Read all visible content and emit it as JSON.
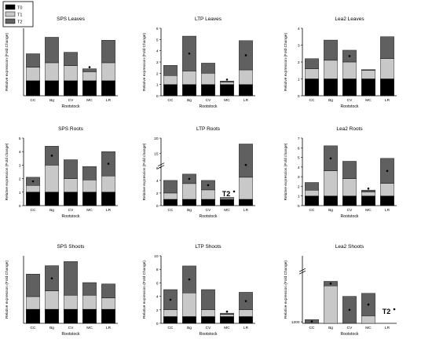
{
  "legend": {
    "items": [
      {
        "label": "T0",
        "color": "#000000"
      },
      {
        "label": "T1",
        "color": "#c8c8c8"
      },
      {
        "label": "T2",
        "color": "#606060"
      }
    ]
  },
  "colors": {
    "T0": "#000000",
    "T1": "#c8c8c8",
    "T2": "#606060"
  },
  "chart_data": [
    {
      "type": "bar",
      "stacked": true,
      "title": "SPS Leaves",
      "xlabel": "Rootstock",
      "ylabel": "Relative expression (Fold Change)",
      "categories": [
        "CC",
        "Bg",
        "CV",
        "MC",
        "LR"
      ],
      "series": [
        {
          "name": "T0",
          "values": [
            1.0,
            1.0,
            1.0,
            1.0,
            1.0
          ]
        },
        {
          "name": "T1",
          "values": [
            0.9,
            1.2,
            1.0,
            0.6,
            1.2
          ]
        },
        {
          "name": "T2",
          "values": [
            0.9,
            1.7,
            0.9,
            0.2,
            1.5
          ]
        }
      ],
      "significance": [
        false,
        false,
        false,
        true,
        false
      ],
      "yticks": [],
      "ylim": [
        0,
        4.5
      ],
      "grid": false
    },
    {
      "type": "bar",
      "stacked": true,
      "title": "LTP Leaves",
      "xlabel": "Rootstock",
      "ylabel": "Relative expression (Fold Change)",
      "categories": [
        "CC",
        "Bg",
        "CV",
        "MC",
        "LR"
      ],
      "series": [
        {
          "name": "T0",
          "values": [
            1.0,
            1.0,
            1.0,
            1.0,
            1.0
          ]
        },
        {
          "name": "T1",
          "values": [
            0.8,
            1.2,
            1.0,
            0.2,
            1.3
          ]
        },
        {
          "name": "T2",
          "values": [
            0.9,
            3.1,
            0.9,
            0.1,
            2.6
          ]
        }
      ],
      "significance": [
        false,
        true,
        false,
        true,
        true
      ],
      "yticks": [
        "0",
        "1",
        "2",
        "3",
        "4",
        "5",
        "6"
      ],
      "ylim": [
        0,
        6
      ],
      "grid": false
    },
    {
      "type": "bar",
      "stacked": true,
      "title": "Lea2 Leaves",
      "xlabel": "Rootstock",
      "ylabel": "Relative expression (Fold Change)",
      "categories": [
        "CC",
        "Bg",
        "CV",
        "MC",
        "LR"
      ],
      "series": [
        {
          "name": "T0",
          "values": [
            1.0,
            1.0,
            1.0,
            1.0,
            1.0
          ]
        },
        {
          "name": "T1",
          "values": [
            0.6,
            1.1,
            1.0,
            0.5,
            1.2
          ]
        },
        {
          "name": "T2",
          "values": [
            0.6,
            1.2,
            0.7,
            0.05,
            1.3
          ]
        }
      ],
      "significance": [
        false,
        false,
        true,
        false,
        false
      ],
      "yticks": [
        "0",
        "1",
        "2",
        "3",
        "4"
      ],
      "ylim": [
        0,
        4
      ],
      "grid": false
    },
    {
      "type": "bar",
      "stacked": true,
      "title": "SPS Roots",
      "xlabel": "Rootstock",
      "ylabel": "Relative expression (Fold change)",
      "categories": [
        "CC",
        "Bg",
        "CV",
        "MC",
        "LR"
      ],
      "series": [
        {
          "name": "T0",
          "values": [
            1.0,
            1.0,
            1.0,
            1.0,
            1.0
          ]
        },
        {
          "name": "T1",
          "values": [
            0.5,
            2.0,
            1.0,
            0.9,
            1.2
          ]
        },
        {
          "name": "T2",
          "values": [
            0.6,
            1.4,
            1.4,
            1.0,
            1.8
          ]
        }
      ],
      "significance": [
        true,
        true,
        false,
        false,
        true
      ],
      "yticks": [
        "0",
        "1",
        "2",
        "3",
        "4",
        "5"
      ],
      "ylim": [
        0,
        5
      ],
      "grid": false
    },
    {
      "type": "bar",
      "stacked": true,
      "title": "LTP Roots",
      "xlabel": "Rootstock",
      "ylabel": "Relative expression (Fold change)",
      "categories": [
        "CC",
        "Bg",
        "CV",
        "MC",
        "LR"
      ],
      "series": [
        {
          "name": "T0",
          "values": [
            1.0,
            1.0,
            1.0,
            1.0,
            1.0
          ]
        },
        {
          "name": "T1",
          "values": [
            1.0,
            2.5,
            1.5,
            0.2,
            3.5
          ]
        },
        {
          "name": "T2",
          "values": [
            2.0,
            1.5,
            1.5,
            0.1,
            13.6
          ]
        }
      ],
      "significance": [
        false,
        true,
        true,
        false,
        true
      ],
      "inline_label": {
        "text": "T2",
        "category": "MC"
      },
      "yticks": [
        "0",
        "2",
        "4",
        "6",
        "15",
        "20"
      ],
      "ylim": [
        0,
        20
      ],
      "axis_break": true,
      "grid": false
    },
    {
      "type": "bar",
      "stacked": true,
      "title": "Lea2 Roots",
      "xlabel": "Rootstock",
      "ylabel": "Relative expression (Fold change)",
      "categories": [
        "CC",
        "Bg",
        "CV",
        "MC",
        "LR"
      ],
      "series": [
        {
          "name": "T0",
          "values": [
            1.0,
            1.0,
            1.0,
            1.0,
            1.0
          ]
        },
        {
          "name": "T1",
          "values": [
            0.6,
            2.6,
            1.8,
            0.4,
            1.3
          ]
        },
        {
          "name": "T2",
          "values": [
            0.8,
            2.6,
            1.8,
            0.2,
            2.6
          ]
        }
      ],
      "significance": [
        false,
        true,
        false,
        true,
        true
      ],
      "yticks": [
        "0",
        "1",
        "2",
        "3",
        "4",
        "5",
        "6",
        "7"
      ],
      "ylim": [
        0,
        7
      ],
      "grid": false
    },
    {
      "type": "bar",
      "stacked": true,
      "title": "SPS Shoots",
      "xlabel": "Rootstock",
      "ylabel": "Relative expression (Fold Change)",
      "categories": [
        "CC",
        "Bg",
        "CV",
        "MC",
        "LR"
      ],
      "series": [
        {
          "name": "T0",
          "values": [
            1.0,
            1.0,
            1.0,
            1.0,
            1.0
          ]
        },
        {
          "name": "T1",
          "values": [
            0.9,
            1.3,
            1.0,
            1.0,
            0.8
          ]
        },
        {
          "name": "T2",
          "values": [
            1.6,
            1.8,
            2.4,
            0.9,
            1.0
          ]
        }
      ],
      "significance": [
        false,
        true,
        false,
        false,
        false
      ],
      "yticks": [],
      "ylim": [
        0,
        4.8
      ],
      "grid": false
    },
    {
      "type": "bar",
      "stacked": true,
      "title": "LTP Shoots",
      "xlabel": "Rootstock",
      "ylabel": "Relative expression (Fold Change)",
      "categories": [
        "CC",
        "Bg",
        "CV",
        "MC",
        "LR"
      ],
      "series": [
        {
          "name": "T0",
          "values": [
            1.0,
            1.0,
            1.0,
            1.0,
            1.0
          ]
        },
        {
          "name": "T1",
          "values": [
            1.0,
            3.5,
            1.0,
            0.3,
            1.0
          ]
        },
        {
          "name": "T2",
          "values": [
            3.0,
            4.0,
            3.0,
            0.2,
            2.6
          ]
        }
      ],
      "significance": [
        true,
        true,
        false,
        true,
        true
      ],
      "yticks": [
        "0",
        "2",
        "4",
        "6",
        "8",
        "10"
      ],
      "ylim": [
        0,
        10
      ],
      "grid": false
    },
    {
      "type": "bar",
      "stacked": true,
      "title": "Lea2 Shoots",
      "xlabel": "Rootstock",
      "ylabel": "Relative expression (Fold Change)",
      "categories": [
        "CC",
        "Bg",
        "CV",
        "MC",
        "LR"
      ],
      "series": [
        {
          "name": "T0",
          "values": [
            0.0,
            0.0,
            0.0,
            0.0,
            0.0
          ]
        },
        {
          "name": "T1",
          "values": [
            0.0,
            25.0,
            0.0,
            5.0,
            0.0
          ]
        },
        {
          "name": "T2",
          "values": [
            2.5,
            3.0,
            18.0,
            15.0,
            0.0
          ]
        }
      ],
      "significance": [
        true,
        true,
        true,
        true,
        false
      ],
      "inline_label": {
        "text": "T2",
        "category": "LR"
      },
      "yticks": [
        "1200"
      ],
      "ylim": [
        0,
        1200
      ],
      "axis_break": true,
      "grid": false
    }
  ]
}
